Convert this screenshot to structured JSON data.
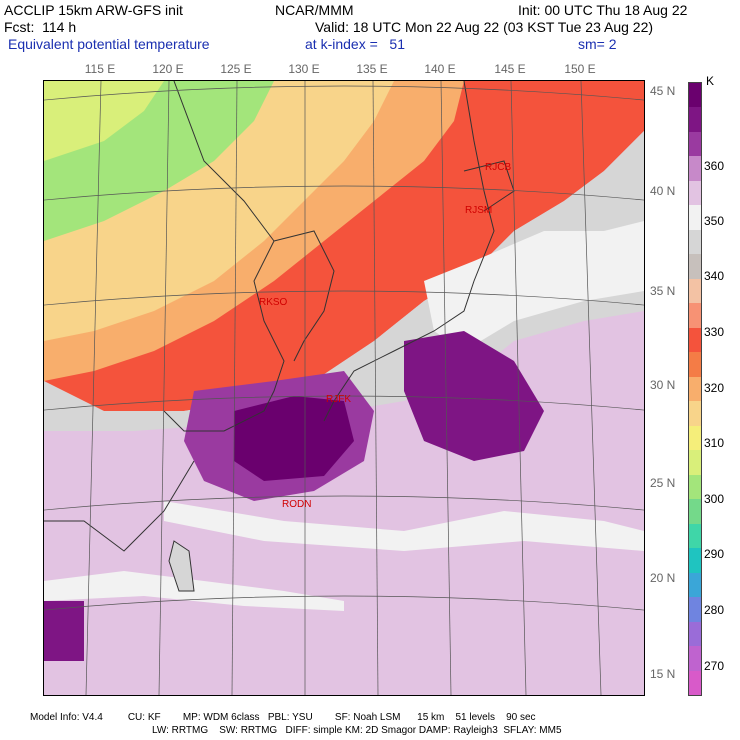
{
  "header": {
    "model": "ACCLIP 15km ARW-GFS init",
    "org": "NCAR/MMM",
    "init": "Init: 00 UTC Thu 18 Aug 22",
    "fcst": "Fcst:  114 h",
    "valid": "Valid: 18 UTC Mon 22 Aug 22 (03 KST Tue 23 Aug 22)",
    "field": "Equivalent potential temperature",
    "level": "at k-index =   51",
    "smooth": "sm= 2"
  },
  "lon_labels": [
    "115 E",
    "120 E",
    "125 E",
    "130 E",
    "135 E",
    "140 E",
    "145 E",
    "150 E"
  ],
  "lat_labels": [
    "45 N",
    "40 N",
    "35 N",
    "30 N",
    "25 N",
    "20 N",
    "15 N"
  ],
  "stations": [
    "RJCB",
    "RJSM",
    "RKSO",
    "RJFK",
    "RODN"
  ],
  "colorbar": {
    "unit": "K",
    "ticks": [
      "360",
      "350",
      "340",
      "330",
      "320",
      "310",
      "300",
      "290",
      "280",
      "270"
    ],
    "colors": [
      "#6a006e",
      "#7e1584",
      "#9a3aa0",
      "#c789c9",
      "#e2c3e2",
      "#f2f2f2",
      "#d6d6d6",
      "#c7c0bc",
      "#f3c2a4",
      "#f79274",
      "#f4533c",
      "#f47c46",
      "#f8ae6c",
      "#f8d48a",
      "#f5ee7a",
      "#d9ef7a",
      "#a3e57b",
      "#74d98a",
      "#3fd6a8",
      "#1fc4c0",
      "#3aa6d8",
      "#6f84e0",
      "#9a6cd8",
      "#bf63cf",
      "#d85ac9"
    ],
    "accent_hex": "#1a2fb0"
  },
  "footer": {
    "line1": "Model Info: V4.4         CU: KF        MP: WDM 6class   PBL: YSU        SF: Noah LSM      15 km    51 levels    90 sec",
    "line2": "LW: RRTMG    SW: RRTMG   DIFF: simple KM: 2D Smagor DAMP: Rayleigh3  SFLAY: MM5"
  }
}
